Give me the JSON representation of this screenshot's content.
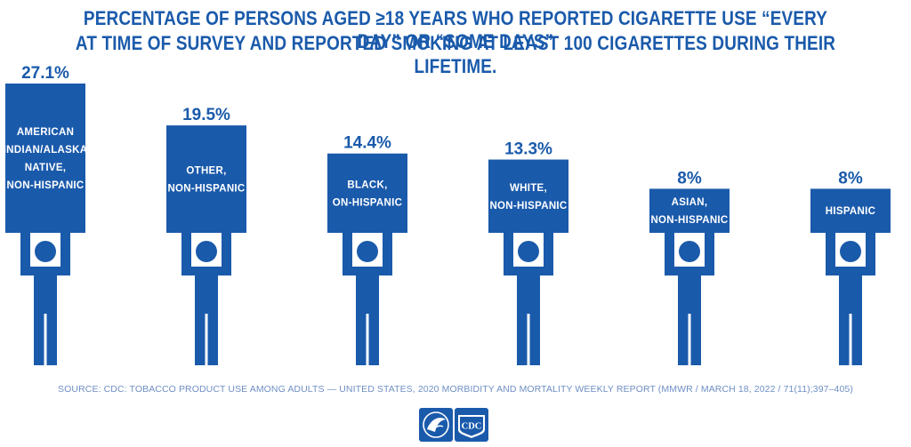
{
  "title": {
    "line1": "PERCENTAGE OF PERSONS AGED ≥18 YEARS WHO REPORTED CIGARETTE USE “EVERY DAY” OR “SOME DAYS”",
    "line2": "AT TIME OF SURVEY AND REPORTED SMOKING AT LEAST 100 CIGARETTES DURING THEIR LIFETIME."
  },
  "source": "SOURCE: CDC: TOBACCO PRODUCT USE AMONG ADULTS — UNITED STATES, 2020 MORBIDITY AND MORTALITY WEEKLY REPORT (MMWR / MARCH 18, 2022 / 71(11);397–405)",
  "logo": {
    "cdc_text": "CDC"
  },
  "colors": {
    "primary": "#1a5aab",
    "source_text": "#6f8fc4",
    "background": "#ffffff"
  },
  "chart_data": {
    "type": "bar",
    "categories": [
      [
        "AMERICAN",
        "INDIAN/ALASKA",
        "NATIVE,",
        "NON-HISPANIC"
      ],
      [
        "OTHER,",
        "NON-HISPANIC"
      ],
      [
        "BLACK,",
        "ON-HISPANIC"
      ],
      [
        "WHITE,",
        "NON-HISPANIC"
      ],
      [
        "ASIAN,",
        "NON-HISPANIC"
      ],
      [
        "HISPANIC"
      ]
    ],
    "values": [
      27.1,
      19.5,
      14.4,
      13.3,
      8,
      8
    ],
    "value_labels": [
      "27.1%",
      "19.5%",
      "14.4%",
      "13.3%",
      "8%",
      "8%"
    ],
    "ylim": [
      0,
      27.1
    ],
    "grid": false,
    "legend": "none",
    "marker": "person-holding-sign"
  }
}
